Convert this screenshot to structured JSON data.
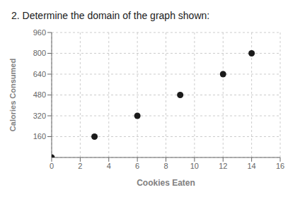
{
  "chart_data": {
    "type": "scatter",
    "title": "2. Determine the domain of the graph shown:",
    "x_label": "Cookies Eaten",
    "y_label": "Calories Consumed",
    "x": [
      0,
      3,
      6,
      9,
      12,
      14
    ],
    "values": [
      0,
      160,
      320,
      480,
      640,
      800
    ],
    "xlim": [
      0,
      16
    ],
    "ylim": [
      0,
      960
    ],
    "xticks": [
      0,
      2,
      4,
      6,
      8,
      10,
      12,
      14,
      16
    ],
    "yticks": [
      160,
      320,
      480,
      640,
      800,
      960
    ],
    "grid": true,
    "color": "#1a1a1a"
  }
}
